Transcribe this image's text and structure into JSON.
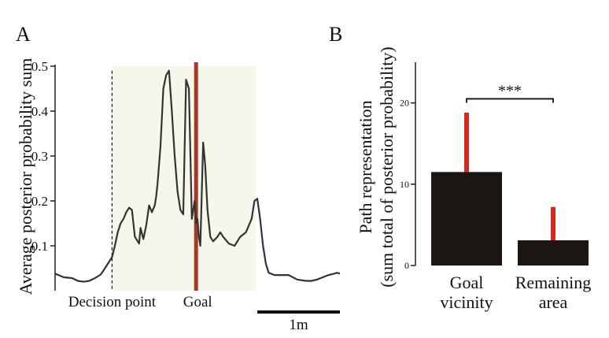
{
  "chart_data": [
    {
      "panel_label": "A",
      "type": "line",
      "ylabel": "Average posterior probability sum",
      "ylim": [
        0,
        0.5
      ],
      "yticks": [
        {
          "value": 0.1,
          "label": "0.1"
        },
        {
          "value": 0.2,
          "label": "0.2"
        },
        {
          "value": 0.3,
          "label": "0.3"
        },
        {
          "value": 0.4,
          "label": "0.4"
        },
        {
          "value": 0.5,
          "label": "0.5"
        }
      ],
      "xlim": [
        0,
        100
      ],
      "grid": false,
      "annotations": {
        "decision_point": {
          "x": 20,
          "label": "Decision point"
        },
        "goal": {
          "x": 49.5,
          "label": "Goal",
          "color": "#a33a28"
        },
        "shaded_region": {
          "x_start": 20,
          "x_end": 70.5,
          "color": "#f6f7ea"
        },
        "scale_bar": {
          "x_start": 71,
          "x_end": 100,
          "label": "1m"
        }
      },
      "line_color": "#333333",
      "series": [
        {
          "x": [
            0,
            3,
            6,
            8,
            10,
            12,
            14,
            16,
            17,
            18,
            19,
            20,
            21,
            22,
            23,
            24,
            25,
            26,
            27,
            28,
            29,
            29.5,
            30,
            31,
            32,
            33,
            34,
            35,
            35.5,
            36,
            37,
            38,
            39,
            40,
            41,
            42,
            43,
            44,
            45,
            46,
            47,
            48,
            49,
            49.5,
            50,
            50.5,
            51,
            52,
            52.7,
            53.5,
            54.5,
            55.5,
            57,
            58,
            59,
            61,
            63,
            65,
            67,
            69,
            70,
            71,
            72,
            73,
            74,
            75,
            77,
            79,
            82,
            85,
            88,
            90,
            92,
            94,
            96,
            98,
            99,
            100
          ],
          "y": [
            0.038,
            0.03,
            0.028,
            0.022,
            0.02,
            0.022,
            0.028,
            0.036,
            0.045,
            0.055,
            0.065,
            0.075,
            0.1,
            0.13,
            0.15,
            0.16,
            0.175,
            0.185,
            0.18,
            0.12,
            0.11,
            0.105,
            0.14,
            0.115,
            0.145,
            0.19,
            0.175,
            0.19,
            0.21,
            0.24,
            0.32,
            0.45,
            0.48,
            0.49,
            0.4,
            0.3,
            0.22,
            0.18,
            0.17,
            0.47,
            0.45,
            0.16,
            0.2,
            0.15,
            0.16,
            0.12,
            0.1,
            0.33,
            0.28,
            0.18,
            0.12,
            0.11,
            0.12,
            0.13,
            0.12,
            0.105,
            0.1,
            0.12,
            0.13,
            0.16,
            0.2,
            0.205,
            0.16,
            0.1,
            0.06,
            0.04,
            0.035,
            0.035,
            0.035,
            0.025,
            0.022,
            0.022,
            0.025,
            0.03,
            0.035,
            0.038,
            0.04,
            0.038
          ]
        }
      ]
    },
    {
      "panel_label": "B",
      "type": "bar",
      "ylabel": "Path representation",
      "ylabel_line2": "(sum total of posterior probability)",
      "ylim": [
        0,
        25
      ],
      "yticks": [
        {
          "value": 0,
          "label": "0"
        },
        {
          "value": 10,
          "label": "10"
        },
        {
          "value": 20,
          "label": "20"
        }
      ],
      "bar_color": "#1c1612",
      "error_color": "#d42a1e",
      "categories": [
        {
          "line1": "Goal",
          "line2": "vicinity"
        },
        {
          "line1": "Remaining",
          "line2": "area"
        }
      ],
      "values": [
        11.5,
        3.1
      ],
      "errors": [
        7.3,
        4.1
      ],
      "significance": {
        "label": "***",
        "between": [
          0,
          1
        ],
        "level": 20.5
      }
    }
  ]
}
